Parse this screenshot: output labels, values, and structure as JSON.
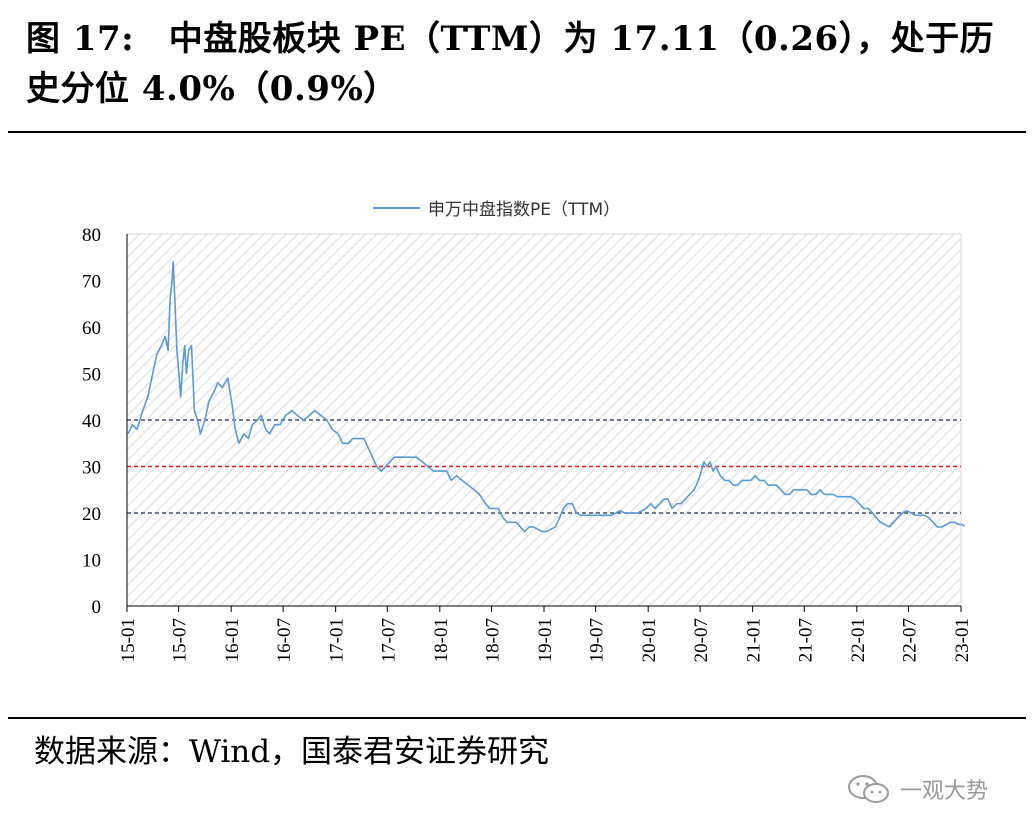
{
  "figure": {
    "title": "图 17:　中盘股板块 PE（TTM）为 17.11（0.26），处于历史分位 4.0%（0.9%）",
    "source": "数据来源：Wind，国泰君安证券研究",
    "watermark": "一观大势"
  },
  "colors": {
    "series": "#5b9bd5",
    "ref_line_30": "#e02020",
    "ref_line_20_40": "#44546a",
    "hatch": "#e6e6e6"
  },
  "chart_data": {
    "type": "line",
    "legend": "申万中盘指数PE（TTM）",
    "legend_position": "top-center",
    "ylim": [
      0,
      80
    ],
    "yticks": [
      0,
      10,
      20,
      30,
      40,
      50,
      60,
      70,
      80
    ],
    "xlim": [
      "2015-01",
      "2023-01"
    ],
    "xticks": [
      "15-01",
      "15-07",
      "16-01",
      "16-07",
      "17-01",
      "17-07",
      "18-01",
      "18-07",
      "19-01",
      "19-07",
      "20-01",
      "20-07",
      "21-01",
      "21-07",
      "22-01",
      "22-07",
      "23-01"
    ],
    "reference_lines": [
      {
        "y": 40,
        "style": "dashed"
      },
      {
        "y": 30,
        "style": "dashed"
      },
      {
        "y": 20,
        "style": "dashed"
      }
    ],
    "grid": false,
    "series": [
      {
        "name": "申万中盘指数PE（TTM）",
        "points": [
          [
            "2015-01-05",
            37
          ],
          [
            "2015-01-20",
            39
          ],
          [
            "2015-02-05",
            38
          ],
          [
            "2015-02-25",
            42
          ],
          [
            "2015-03-15",
            45
          ],
          [
            "2015-04-01",
            50
          ],
          [
            "2015-04-15",
            54
          ],
          [
            "2015-05-01",
            56
          ],
          [
            "2015-05-15",
            58
          ],
          [
            "2015-05-25",
            55
          ],
          [
            "2015-06-01",
            66
          ],
          [
            "2015-06-08",
            70
          ],
          [
            "2015-06-12",
            74
          ],
          [
            "2015-06-18",
            65
          ],
          [
            "2015-06-25",
            55
          ],
          [
            "2015-07-02",
            50
          ],
          [
            "2015-07-08",
            45
          ],
          [
            "2015-07-15",
            52
          ],
          [
            "2015-07-22",
            56
          ],
          [
            "2015-07-28",
            50
          ],
          [
            "2015-08-05",
            55
          ],
          [
            "2015-08-15",
            56
          ],
          [
            "2015-08-25",
            42
          ],
          [
            "2015-09-05",
            40
          ],
          [
            "2015-09-15",
            37
          ],
          [
            "2015-10-01",
            40
          ],
          [
            "2015-10-15",
            44
          ],
          [
            "2015-11-01",
            46
          ],
          [
            "2015-11-15",
            48
          ],
          [
            "2015-12-01",
            47
          ],
          [
            "2015-12-20",
            49
          ],
          [
            "2016-01-05",
            43
          ],
          [
            "2016-01-15",
            38
          ],
          [
            "2016-01-28",
            35
          ],
          [
            "2016-02-15",
            37
          ],
          [
            "2016-03-01",
            36
          ],
          [
            "2016-03-15",
            39
          ],
          [
            "2016-04-01",
            40
          ],
          [
            "2016-04-15",
            41
          ],
          [
            "2016-05-01",
            38
          ],
          [
            "2016-05-15",
            37
          ],
          [
            "2016-06-01",
            39
          ],
          [
            "2016-06-20",
            39
          ],
          [
            "2016-07-10",
            41
          ],
          [
            "2016-08-01",
            42
          ],
          [
            "2016-08-20",
            41
          ],
          [
            "2016-09-10",
            40
          ],
          [
            "2016-10-01",
            41
          ],
          [
            "2016-10-20",
            42
          ],
          [
            "2016-11-10",
            41
          ],
          [
            "2016-12-01",
            40
          ],
          [
            "2016-12-20",
            38
          ],
          [
            "2017-01-10",
            37
          ],
          [
            "2017-01-25",
            35
          ],
          [
            "2017-02-15",
            35
          ],
          [
            "2017-03-01",
            36
          ],
          [
            "2017-03-20",
            36
          ],
          [
            "2017-04-10",
            36
          ],
          [
            "2017-04-25",
            34
          ],
          [
            "2017-05-10",
            32
          ],
          [
            "2017-05-25",
            30
          ],
          [
            "2017-06-10",
            29
          ],
          [
            "2017-06-25",
            30
          ],
          [
            "2017-07-10",
            31
          ],
          [
            "2017-07-25",
            32
          ],
          [
            "2017-08-10",
            32
          ],
          [
            "2017-09-01",
            32
          ],
          [
            "2017-09-20",
            32
          ],
          [
            "2017-10-10",
            32
          ],
          [
            "2017-11-01",
            31
          ],
          [
            "2017-11-20",
            30
          ],
          [
            "2017-12-10",
            29
          ],
          [
            "2018-01-05",
            29
          ],
          [
            "2018-01-25",
            29
          ],
          [
            "2018-02-10",
            27
          ],
          [
            "2018-03-01",
            28
          ],
          [
            "2018-03-20",
            27
          ],
          [
            "2018-04-10",
            26
          ],
          [
            "2018-05-01",
            25
          ],
          [
            "2018-05-20",
            24
          ],
          [
            "2018-06-10",
            22
          ],
          [
            "2018-06-25",
            21
          ],
          [
            "2018-07-10",
            21
          ],
          [
            "2018-07-25",
            21
          ],
          [
            "2018-08-10",
            19
          ],
          [
            "2018-08-25",
            18
          ],
          [
            "2018-09-10",
            18
          ],
          [
            "2018-09-25",
            18
          ],
          [
            "2018-10-10",
            17
          ],
          [
            "2018-10-25",
            16
          ],
          [
            "2018-11-10",
            17
          ],
          [
            "2018-11-25",
            17
          ],
          [
            "2018-12-10",
            16.5
          ],
          [
            "2018-12-25",
            16
          ],
          [
            "2019-01-10",
            16
          ],
          [
            "2019-01-25",
            16.5
          ],
          [
            "2019-02-10",
            17
          ],
          [
            "2019-02-25",
            19
          ],
          [
            "2019-03-10",
            21
          ],
          [
            "2019-03-25",
            22
          ],
          [
            "2019-04-10",
            22
          ],
          [
            "2019-04-25",
            20
          ],
          [
            "2019-05-10",
            19.5
          ],
          [
            "2019-05-25",
            19.5
          ],
          [
            "2019-06-10",
            19.5
          ],
          [
            "2019-06-25",
            19.5
          ],
          [
            "2019-07-10",
            19.5
          ],
          [
            "2019-07-25",
            19.5
          ],
          [
            "2019-08-10",
            19.5
          ],
          [
            "2019-08-25",
            19.5
          ],
          [
            "2019-09-10",
            20
          ],
          [
            "2019-09-25",
            20.5
          ],
          [
            "2019-10-10",
            20
          ],
          [
            "2019-10-25",
            20
          ],
          [
            "2019-11-10",
            20
          ],
          [
            "2019-11-25",
            20
          ],
          [
            "2019-12-10",
            20.5
          ],
          [
            "2019-12-25",
            21
          ],
          [
            "2020-01-10",
            22
          ],
          [
            "2020-01-25",
            21
          ],
          [
            "2020-02-10",
            22
          ],
          [
            "2020-02-25",
            23
          ],
          [
            "2020-03-10",
            23
          ],
          [
            "2020-03-25",
            21
          ],
          [
            "2020-04-10",
            22
          ],
          [
            "2020-04-25",
            22
          ],
          [
            "2020-05-10",
            23
          ],
          [
            "2020-05-25",
            24
          ],
          [
            "2020-06-10",
            25
          ],
          [
            "2020-06-25",
            27
          ],
          [
            "2020-07-05",
            29
          ],
          [
            "2020-07-15",
            31
          ],
          [
            "2020-07-25",
            30
          ],
          [
            "2020-08-05",
            31
          ],
          [
            "2020-08-15",
            29
          ],
          [
            "2020-08-25",
            30
          ],
          [
            "2020-09-10",
            28
          ],
          [
            "2020-09-25",
            27
          ],
          [
            "2020-10-10",
            27
          ],
          [
            "2020-10-25",
            26
          ],
          [
            "2020-11-10",
            26
          ],
          [
            "2020-11-25",
            27
          ],
          [
            "2020-12-10",
            27
          ],
          [
            "2020-12-25",
            27
          ],
          [
            "2021-01-10",
            28
          ],
          [
            "2021-01-25",
            27
          ],
          [
            "2021-02-10",
            27
          ],
          [
            "2021-02-25",
            26
          ],
          [
            "2021-03-10",
            26
          ],
          [
            "2021-03-25",
            26
          ],
          [
            "2021-04-10",
            25
          ],
          [
            "2021-04-25",
            24
          ],
          [
            "2021-05-10",
            24
          ],
          [
            "2021-05-25",
            25
          ],
          [
            "2021-06-10",
            25
          ],
          [
            "2021-06-25",
            25
          ],
          [
            "2021-07-10",
            25
          ],
          [
            "2021-07-25",
            24
          ],
          [
            "2021-08-10",
            24
          ],
          [
            "2021-08-25",
            25
          ],
          [
            "2021-09-10",
            24
          ],
          [
            "2021-09-25",
            24
          ],
          [
            "2021-10-10",
            24
          ],
          [
            "2021-10-25",
            23.5
          ],
          [
            "2021-11-10",
            23.5
          ],
          [
            "2021-11-25",
            23.5
          ],
          [
            "2021-12-10",
            23.5
          ],
          [
            "2021-12-25",
            23
          ],
          [
            "2022-01-10",
            22
          ],
          [
            "2022-01-25",
            21
          ],
          [
            "2022-02-10",
            21
          ],
          [
            "2022-02-25",
            20
          ],
          [
            "2022-03-10",
            19
          ],
          [
            "2022-03-25",
            18
          ],
          [
            "2022-04-10",
            17.5
          ],
          [
            "2022-04-25",
            17
          ],
          [
            "2022-05-10",
            18
          ],
          [
            "2022-05-25",
            19
          ],
          [
            "2022-06-10",
            20
          ],
          [
            "2022-06-25",
            20.5
          ],
          [
            "2022-07-10",
            20
          ],
          [
            "2022-07-25",
            19.5
          ],
          [
            "2022-08-10",
            19.5
          ],
          [
            "2022-08-25",
            19.5
          ],
          [
            "2022-09-10",
            19
          ],
          [
            "2022-09-25",
            18
          ],
          [
            "2022-10-10",
            17
          ],
          [
            "2022-10-25",
            17
          ],
          [
            "2022-11-10",
            17.5
          ],
          [
            "2022-11-25",
            18
          ],
          [
            "2022-12-10",
            18
          ],
          [
            "2022-12-25",
            17.5
          ],
          [
            "2023-01-06",
            17.5
          ],
          [
            "2023-01-13",
            17.11
          ]
        ]
      }
    ]
  }
}
